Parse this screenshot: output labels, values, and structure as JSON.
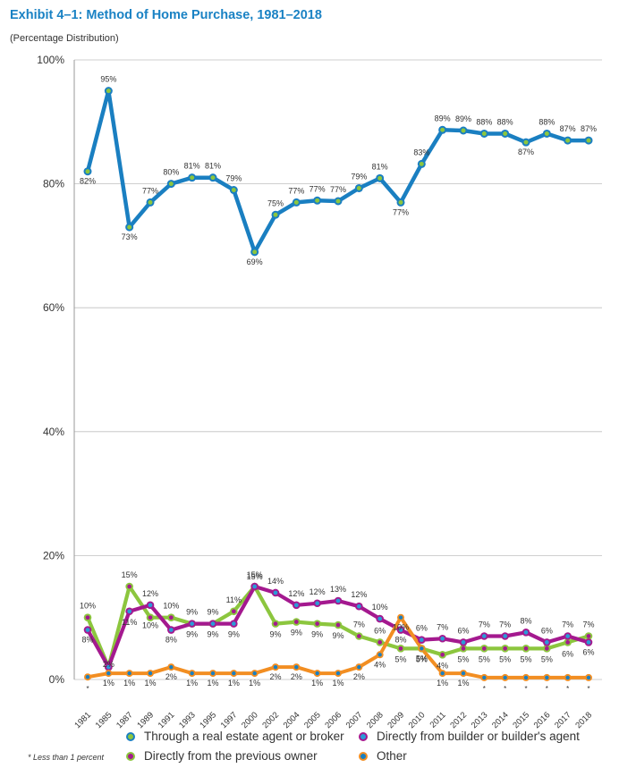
{
  "title": "Exhibit 4–1:  Method of Home Purchase, 1981–2018",
  "subtitle": "(Percentage Distribution)",
  "footnote": "* Less than 1 percent",
  "colors": {
    "agent": "#1a7fc1",
    "owner": "#8cc63e",
    "builder": "#a4198f",
    "other": "#f28e22",
    "grid": "#bfbfbf",
    "title": "#1a82c4"
  },
  "chart_data": {
    "type": "line",
    "ylim": [
      0,
      100
    ],
    "y_ticks": [
      "0%",
      "20%",
      "40%",
      "60%",
      "80%",
      "100%"
    ],
    "grid": "horizontal",
    "legend_position": "bottom",
    "categories": [
      "1981",
      "1985",
      "1987",
      "1989",
      "1991",
      "1993",
      "1995",
      "1997",
      "2000",
      "2002",
      "2004",
      "2005",
      "2006",
      "2007",
      "2008",
      "2009",
      "2010",
      "2011",
      "2012",
      "2013",
      "2014",
      "2015",
      "2016",
      "2017",
      "2018"
    ],
    "series": [
      {
        "key": "agent",
        "name": "Through a real estate agent or broker",
        "values": [
          82,
          95,
          73,
          77,
          80,
          81,
          81,
          79,
          69,
          75,
          77,
          77.3,
          77.2,
          79.3,
          80.9,
          77,
          83.2,
          88.7,
          88.6,
          88.1,
          88.1,
          86.7,
          88.1,
          87,
          87
        ],
        "labels": [
          "82%",
          "95%",
          "73%",
          "77%",
          "80%",
          "81%",
          "81%",
          "79%",
          "69%",
          "75%",
          "77%",
          "77%",
          "77%",
          "79%",
          "81%",
          "77%",
          "83%",
          "89%",
          "89%",
          "88%",
          "88%",
          "87%",
          "88%",
          "87%",
          "87%"
        ]
      },
      {
        "key": "owner",
        "name": "Directly from the previous owner",
        "values": [
          10,
          2,
          15,
          10,
          10,
          9,
          9,
          11,
          15,
          9,
          9.3,
          9,
          8.8,
          7,
          6,
          5,
          5,
          4,
          5,
          5,
          5,
          5,
          5,
          6,
          7
        ],
        "labels": [
          "10%",
          "2%",
          "15%",
          "10%",
          "10%",
          "9%",
          "9%",
          "11%",
          "15%",
          "9%",
          "9%",
          "9%",
          "9%",
          "7%",
          "6%",
          "5%",
          "5%",
          "4%",
          "5%",
          "5%",
          "5%",
          "5%",
          "5%",
          "6%",
          "7%"
        ]
      },
      {
        "key": "builder",
        "name": "Directly from builder or builder's agent",
        "values": [
          8,
          2,
          11,
          12,
          8,
          9,
          9,
          9,
          15,
          14,
          12,
          12.3,
          12.7,
          11.8,
          9.8,
          8,
          6.4,
          6.6,
          6,
          7,
          7,
          7.6,
          6,
          7,
          6
        ],
        "labels": [
          "8%",
          "",
          "11%",
          "12%",
          "8%",
          "9%",
          "9%",
          "9%",
          "15%",
          "14%",
          "12%",
          "12%",
          "13%",
          "12%",
          "10%",
          "8%",
          "6%",
          "7%",
          "6%",
          "7%",
          "7%",
          "8%",
          "6%",
          "7%",
          "6%"
        ]
      },
      {
        "key": "other",
        "name": "Other",
        "values": [
          0.4,
          1,
          1,
          1,
          2,
          1,
          1,
          1,
          1,
          2,
          2,
          1,
          1,
          2,
          4,
          10,
          5,
          1,
          1,
          0.3,
          0.3,
          0.3,
          0.3,
          0.3,
          0.3
        ],
        "labels": [
          "*",
          "1%",
          "1%",
          "1%",
          "2%",
          "1%",
          "1%",
          "1%",
          "1%",
          "2%",
          "2%",
          "1%",
          "1%",
          "2%",
          "4%",
          "10%",
          "5%",
          "1%",
          "1%",
          "*",
          "*",
          "*",
          "*",
          "*",
          "*"
        ]
      }
    ],
    "legend": [
      {
        "key": "agent",
        "name": "Through a real estate agent or broker"
      },
      {
        "key": "builder",
        "name": "Directly from builder or builder's agent"
      },
      {
        "key": "owner",
        "name": "Directly from the previous owner"
      },
      {
        "key": "other",
        "name": "Other"
      }
    ]
  }
}
